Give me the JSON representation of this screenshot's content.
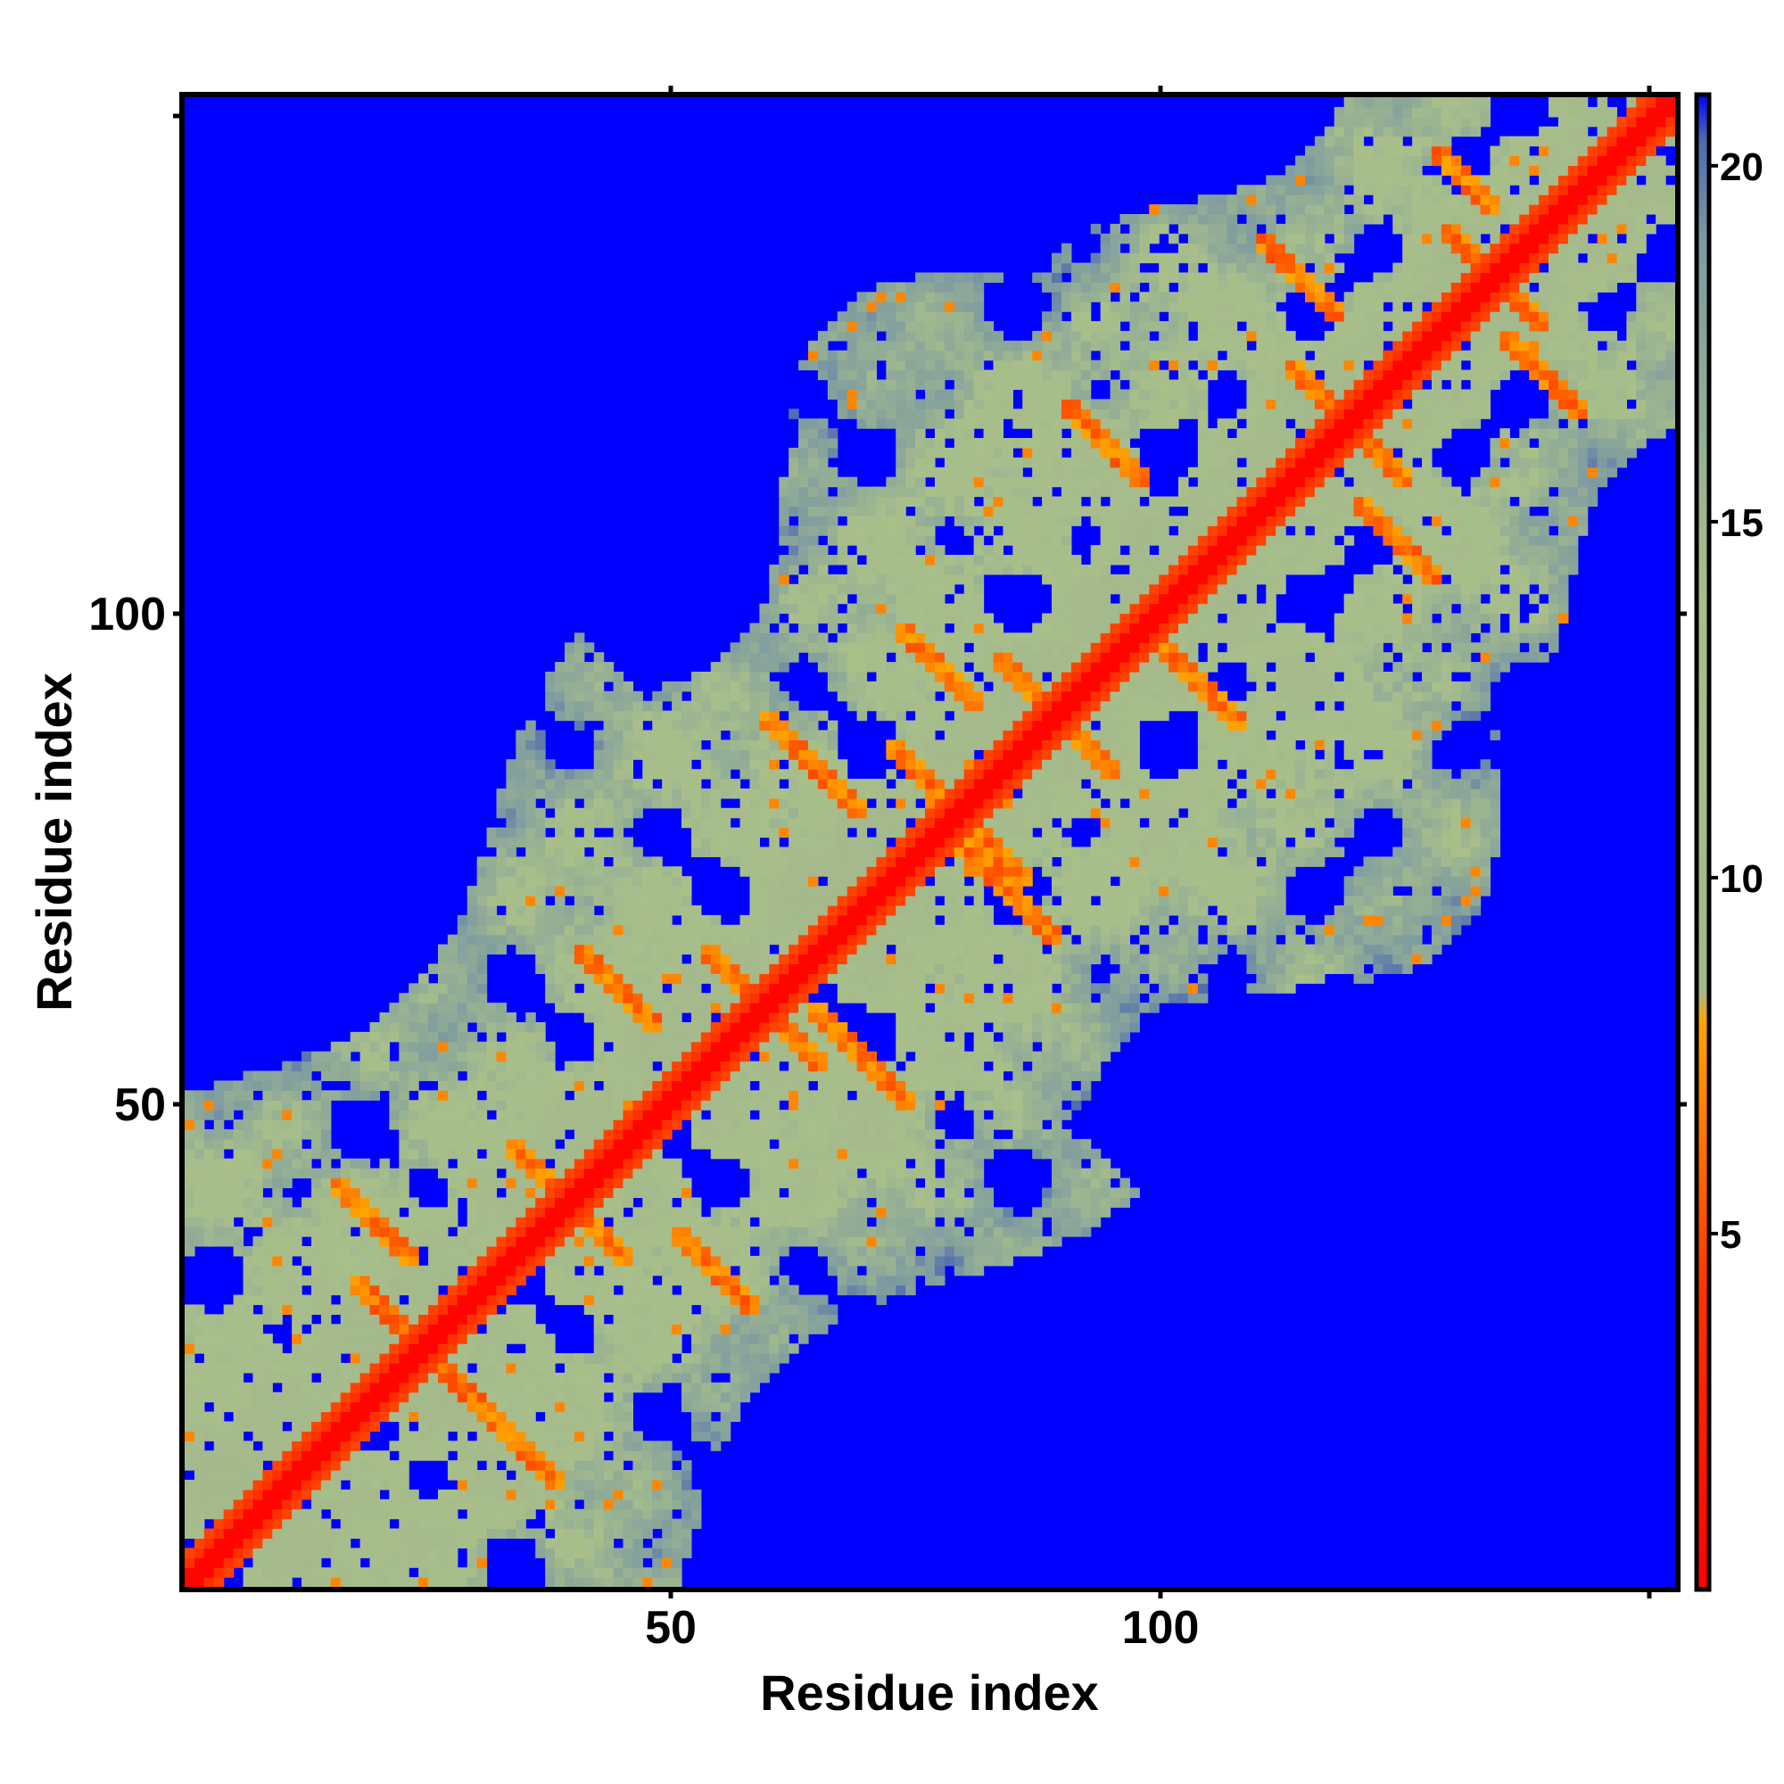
{
  "chart_data": {
    "type": "heatmap",
    "title": "",
    "xlabel": "Residue index",
    "ylabel": "Residue index",
    "xlim": [
      1,
      153
    ],
    "ylim": [
      1,
      153
    ],
    "x_ticks": [
      50,
      100
    ],
    "y_ticks": [
      50,
      100
    ],
    "colorbar": {
      "ticks": [
        5,
        10,
        15,
        20
      ],
      "range": [
        0,
        21
      ],
      "colors": [
        {
          "value": 0,
          "color": "#ff0000"
        },
        {
          "value": 4,
          "color": "#ff2a00"
        },
        {
          "value": 8,
          "color": "#ffa500"
        },
        {
          "value": 8.5,
          "color": "#a4b88c"
        },
        {
          "value": 14,
          "color": "#a8bf8a"
        },
        {
          "value": 19,
          "color": "#7e9ba0"
        },
        {
          "value": 20.5,
          "color": "#4f6ab0"
        },
        {
          "value": 21,
          "color": "#0000ff"
        }
      ]
    },
    "description_values": {
      "diagonal_distance": 0,
      "background_distance": 21,
      "near_contact_range": [
        5,
        8
      ],
      "mid_range": [
        9,
        19
      ]
    }
  }
}
